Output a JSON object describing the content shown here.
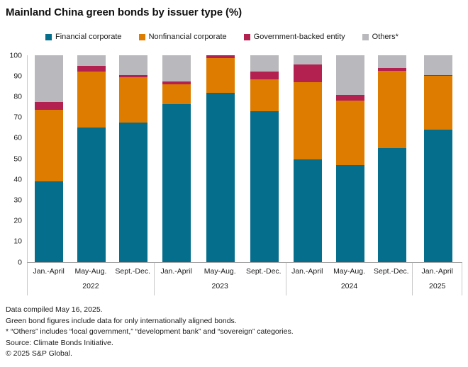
{
  "header": {
    "title": "Mainland China green bonds by issuer type (%)"
  },
  "footnotes": [
    "Data compiled May 16, 2025.",
    "Green bond figures include data for only internationally aligned bonds.",
    "* “Others” includes “local government,” “development bank” and “sovereign” categories.",
    "Source: Climate Bonds Initiative.",
    "© 2025 S&P Global."
  ],
  "chart_data": {
    "type": "bar",
    "stacked": true,
    "title": "Mainland China green bonds by issuer type (%)",
    "ylabel": "",
    "xlabel": "",
    "ylim": [
      0,
      100
    ],
    "yticks": [
      0,
      10,
      20,
      30,
      40,
      50,
      60,
      70,
      80,
      90,
      100
    ],
    "grid": false,
    "legend_position": "top",
    "groups": [
      {
        "label": "2022",
        "categories": [
          "Jan.-April",
          "May-Aug.",
          "Sept.-Dec."
        ]
      },
      {
        "label": "2023",
        "categories": [
          "Jan.-April",
          "May-Aug.",
          "Sept.-Dec."
        ]
      },
      {
        "label": "2024",
        "categories": [
          "Jan.-April",
          "May-Aug.",
          "Sept.-Dec."
        ]
      },
      {
        "label": "2025",
        "categories": [
          "Jan.-April"
        ]
      }
    ],
    "categories": [
      "Jan.-April 2022",
      "May-Aug. 2022",
      "Sept.-Dec. 2022",
      "Jan.-April 2023",
      "May-Aug. 2023",
      "Sept.-Dec. 2023",
      "Jan.-April 2024",
      "May-Aug. 2024",
      "Sept.-Dec. 2024",
      "Jan.-April 2025"
    ],
    "series": [
      {
        "name": "Financial corporate",
        "color": "#046e8c",
        "values": [
          39,
          65,
          67.5,
          76.5,
          82,
          73,
          49.5,
          47,
          55,
          64
        ]
      },
      {
        "name": "Nonfinancial corporate",
        "color": "#de7c00",
        "values": [
          34.5,
          27,
          22,
          9.5,
          16.5,
          15.5,
          37.5,
          31,
          37.5,
          26
        ]
      },
      {
        "name": "Government-backed entity",
        "color": "#b32150",
        "values": [
          4,
          3,
          1,
          1.5,
          1.5,
          3.5,
          8.5,
          3,
          1.5,
          0.5
        ]
      },
      {
        "name": "Others*",
        "color": "#b9b9bd",
        "values": [
          22.5,
          5,
          9.5,
          12.5,
          0,
          8,
          4.5,
          19,
          6,
          9.5
        ]
      }
    ]
  }
}
